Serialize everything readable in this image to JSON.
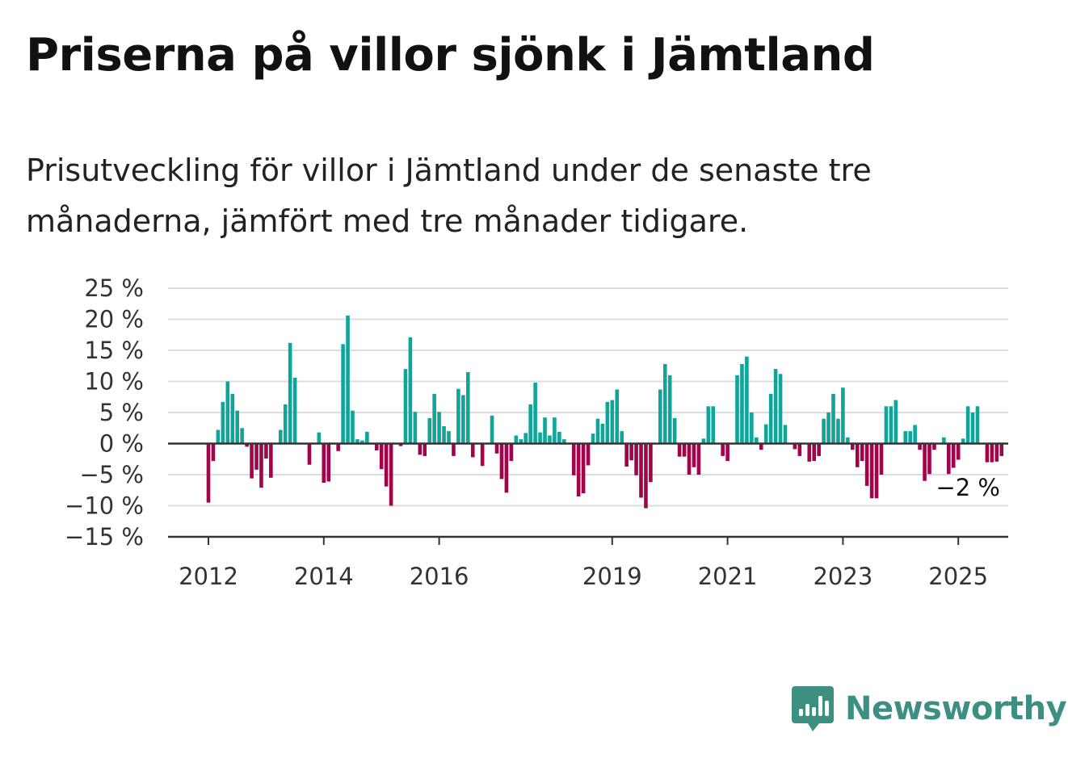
{
  "title": "Priserna på villor sjönk i Jämtland",
  "subtitle": "Prisutveckling för villor i Jämtland under de senaste tre månaderna, jämfört med tre månader tidigare.",
  "brand": {
    "name": "Newsworthy",
    "color": "#3d8f82",
    "icon": "bar-chart-speech-bubble-icon"
  },
  "colors": {
    "positive": "#0fa59a",
    "negative": "#a3034a",
    "grid": "#dddddd",
    "axis": "#333333"
  },
  "chart_data": {
    "type": "bar",
    "ylim": [
      -15,
      25
    ],
    "yticks": [
      25,
      20,
      15,
      10,
      5,
      0,
      -5,
      -10,
      -15
    ],
    "ytick_labels": [
      "25 %",
      "20 %",
      "15 %",
      "10 %",
      "5 %",
      "0 %",
      "−5 %",
      "−10 %",
      "−15 %"
    ],
    "xtick_labels": [
      {
        "label": "2012",
        "year": 2012
      },
      {
        "label": "2014",
        "year": 2014
      },
      {
        "label": "2016",
        "year": 2016
      },
      {
        "label": "2019",
        "year": 2019
      },
      {
        "label": "2021",
        "year": 2021
      },
      {
        "label": "2023",
        "year": 2023
      },
      {
        "label": "2025",
        "year": 2025
      }
    ],
    "start": "2012-01",
    "end": "2025-03",
    "values": [
      -9.5,
      -2.8,
      2.2,
      6.7,
      10.0,
      8.0,
      5.3,
      2.5,
      -0.5,
      -5.6,
      -4.2,
      -7.1,
      -2.4,
      -5.5,
      0,
      2.2,
      6.3,
      16.2,
      10.6,
      0,
      0,
      -3.4,
      0,
      1.8,
      -6.3,
      -6.1,
      0,
      -1.2,
      16.0,
      20.6,
      5.3,
      0.7,
      0.5,
      1.9,
      0,
      -1.1,
      -4.1,
      -6.9,
      -10.0,
      0,
      -0.4,
      12.0,
      17.1,
      5.1,
      -1.8,
      -2.0,
      4.1,
      8.0,
      5.1,
      2.8,
      2.0,
      -2.0,
      8.8,
      7.8,
      11.5,
      -2.2,
      0,
      -3.6,
      0,
      4.5,
      -1.6,
      -5.7,
      -7.9,
      -2.8,
      1.3,
      0.7,
      1.7,
      6.3,
      9.8,
      1.8,
      4.2,
      1.3,
      4.2,
      1.9,
      0.7,
      0,
      -5.1,
      -8.5,
      -8.0,
      -3.5,
      1.6,
      4.0,
      3.2,
      6.7,
      7.0,
      8.7,
      2.0,
      -3.7,
      -2.7,
      -5.1,
      -8.7,
      -10.4,
      -6.2,
      0,
      8.7,
      12.8,
      11.0,
      4.1,
      -2.1,
      -2.1,
      -5.0,
      -3.8,
      -5.0,
      0.8,
      6.0,
      6.0,
      0,
      -2.0,
      -2.8,
      0,
      11.0,
      12.8,
      14.0,
      5.0,
      1.0,
      -1.0,
      3.1,
      8.0,
      12.0,
      11.2,
      3.0,
      0,
      -0.9,
      -2.0,
      0,
      -2.9,
      -2.8,
      -2.0,
      4.0,
      5.0,
      8.0,
      4.0,
      9.0,
      1.0,
      -1.0,
      -3.8,
      -2.8,
      -6.8,
      -8.8,
      -8.8,
      -5.0,
      6.0,
      6.0,
      7.0,
      0,
      2.0,
      2.0,
      3.0,
      -1.0,
      -6.0,
      -4.9,
      -1.0,
      0,
      1.0,
      -4.9,
      -3.9,
      -2.6,
      0.8,
      6.0,
      5.0,
      6.0,
      0,
      -3.0,
      -3.0,
      -2.9,
      -2.0
    ],
    "last_value_label": "−2 %"
  }
}
